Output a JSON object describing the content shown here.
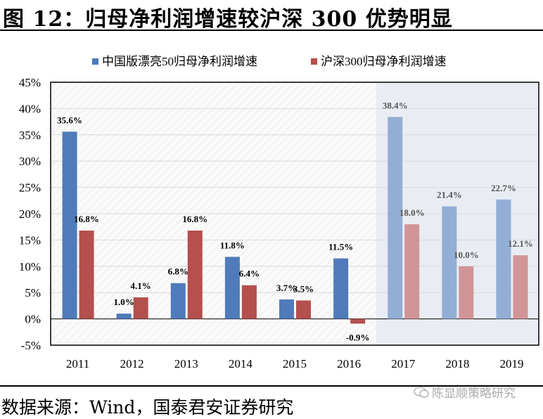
{
  "title": "图 12：归母净利润增速较沪深 300 优势明显",
  "source": "数据来源：Wind，国泰君安证券研究",
  "watermark": "陈显顺策略研究",
  "colors": {
    "series1": "#4f7bba",
    "series2": "#b4504d",
    "series1_light": "#93aed5",
    "series2_light": "#d19597",
    "highlight_bg": "#e9edf3"
  },
  "chart_data": {
    "type": "bar",
    "categories": [
      "2011",
      "2012",
      "2013",
      "2014",
      "2015",
      "2016",
      "2017",
      "2018",
      "2019"
    ],
    "series": [
      {
        "name": "中国版漂亮50归母净利润增速",
        "values": [
          35.6,
          1.0,
          6.8,
          11.8,
          3.7,
          11.5,
          38.4,
          21.4,
          22.7
        ],
        "labels": [
          "35.6%",
          "1.0%",
          "6.8%",
          "11.8%",
          "3.7%",
          "11.5%",
          "38.4%",
          "21.4%",
          "22.7%"
        ]
      },
      {
        "name": "沪深300归母净利润增速",
        "values": [
          16.8,
          4.1,
          16.8,
          6.4,
          3.5,
          -0.9,
          18.0,
          10.0,
          12.1
        ],
        "labels": [
          "16.8%",
          "4.1%",
          "16.8%",
          "6.4%",
          "3.5%",
          "-0.9%",
          "18.0%",
          "10.0%",
          "12.1%"
        ]
      }
    ],
    "yticks": [
      "-5%",
      "0%",
      "5%",
      "10%",
      "15%",
      "20%",
      "25%",
      "30%",
      "35%",
      "40%",
      "45%"
    ],
    "ylim": [
      -5,
      45
    ],
    "highlighted_categories": [
      "2017",
      "2018",
      "2019"
    ],
    "grid": true,
    "legend": "top"
  }
}
